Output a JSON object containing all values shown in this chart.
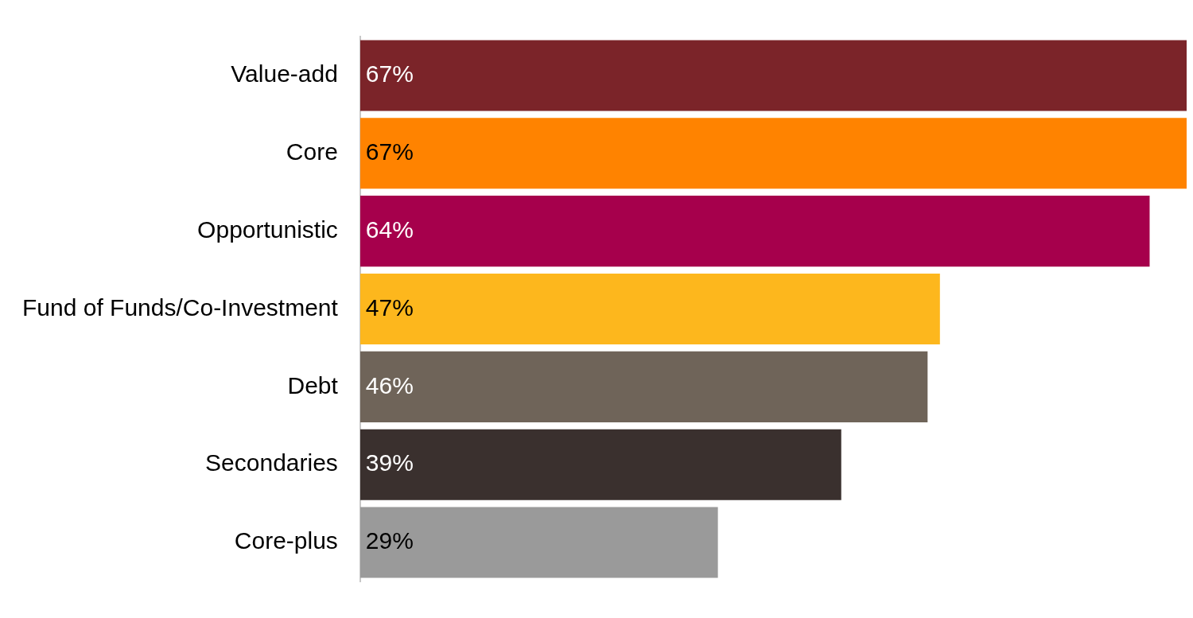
{
  "chart_data": {
    "type": "bar",
    "orientation": "horizontal",
    "categories": [
      "Value-add",
      "Core",
      "Opportunistic",
      "Fund of Funds/Co-Investment",
      "Debt",
      "Secondaries",
      "Core-plus"
    ],
    "values": [
      67,
      67,
      64,
      47,
      46,
      39,
      29
    ],
    "colors": [
      "#7b2429",
      "#ff8300",
      "#a6004c",
      "#fdb71d",
      "#6f6459",
      "#3a302e",
      "#9a9a9a"
    ],
    "value_labels": [
      "67%",
      "67%",
      "64%",
      "47%",
      "46%",
      "39%",
      "29%"
    ],
    "xlim": [
      0,
      67
    ],
    "tick_labels": "y",
    "legend": false
  }
}
